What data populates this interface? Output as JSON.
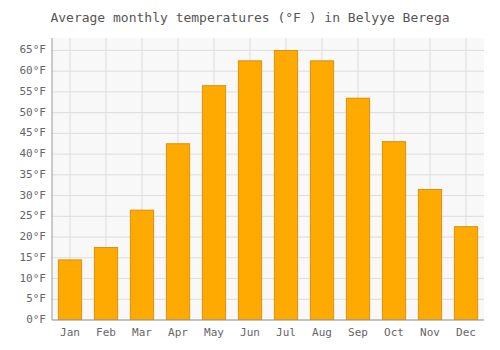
{
  "chart_data": {
    "type": "bar",
    "title": "Average monthly temperatures (°F ) in Belyye Berega",
    "categories": [
      "Jan",
      "Feb",
      "Mar",
      "Apr",
      "May",
      "Jun",
      "Jul",
      "Aug",
      "Sep",
      "Oct",
      "Nov",
      "Dec"
    ],
    "values": [
      14.5,
      17.5,
      26.5,
      42.5,
      56.5,
      62.5,
      65.0,
      62.5,
      53.5,
      43.0,
      31.5,
      22.5
    ],
    "color": "#FFAA00",
    "ylim": [
      0,
      68
    ],
    "yticks": [
      {
        "value": 0,
        "label": "0°F"
      },
      {
        "value": 5,
        "label": "5°F"
      },
      {
        "value": 10,
        "label": "10°F"
      },
      {
        "value": 15,
        "label": "15°F"
      },
      {
        "value": 20,
        "label": "20°F"
      },
      {
        "value": 25,
        "label": "25°F"
      },
      {
        "value": 30,
        "label": "30°F"
      },
      {
        "value": 35,
        "label": "35°F"
      },
      {
        "value": 40,
        "label": "40°F"
      },
      {
        "value": 45,
        "label": "45°F"
      },
      {
        "value": 50,
        "label": "50°F"
      },
      {
        "value": 55,
        "label": "55°F"
      },
      {
        "value": 60,
        "label": "60°F"
      },
      {
        "value": 65,
        "label": "65°F"
      }
    ],
    "grid": true
  }
}
